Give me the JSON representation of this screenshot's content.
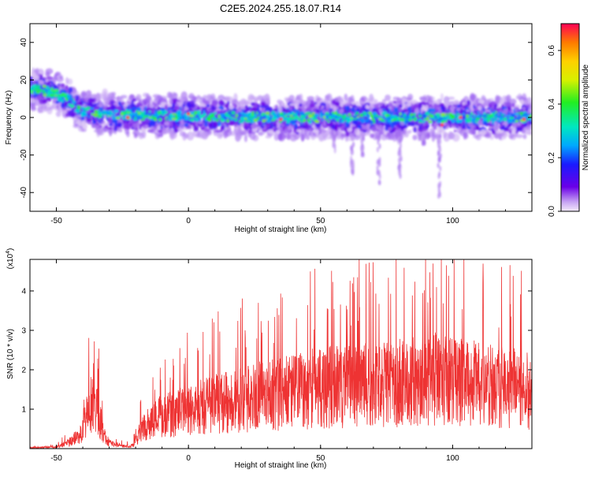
{
  "title": "C2E5.2024.255.18.07.R14",
  "colors": {
    "snr_line": "#ee3333",
    "spectrogram_low": "#ddc8f6",
    "spectrogram_mid": "#6a00e8"
  },
  "chart_data": [
    {
      "type": "heatmap",
      "xlabel": "Height of straight line (km)",
      "ylabel": "Frequency (Hz)",
      "xlim": [
        -60,
        130
      ],
      "ylim": [
        -50,
        50
      ],
      "xticks": [
        -50,
        0,
        50,
        100
      ],
      "yticks": [
        -40,
        -20,
        0,
        20,
        40
      ],
      "grid": false,
      "ridge": {
        "x": [
          -60,
          -50,
          -45,
          -40,
          -30,
          -20,
          0,
          20,
          40,
          60,
          80,
          100,
          130
        ],
        "frequency": [
          16,
          13,
          9,
          3,
          2,
          1,
          1,
          0,
          0,
          0,
          0,
          0,
          0
        ]
      },
      "colorbar": {
        "label": "Normalized spectral amplitude",
        "range": [
          0.0,
          0.7
        ],
        "ticks": [
          0.0,
          0.2,
          0.4,
          0.6
        ]
      }
    },
    {
      "type": "line",
      "xlabel": "Height of straight line (km)",
      "ylabel": "SNR (10 * v/v)",
      "yscale_label": "(x10",
      "yscale_exp": "4",
      "xlim": [
        -60,
        130
      ],
      "ylim": [
        0,
        4.8
      ],
      "xticks": [
        -50,
        0,
        50,
        100
      ],
      "yticks": [
        1,
        2,
        3,
        4
      ],
      "grid": false,
      "envelope": {
        "x": [
          -60,
          -50,
          -45,
          -40,
          -38,
          -36,
          -34,
          -32,
          -30,
          -27,
          -24,
          -21,
          -18,
          -15,
          -10,
          -5,
          0,
          10,
          20,
          30,
          40,
          50,
          60,
          70,
          80,
          90,
          95,
          100,
          110,
          120,
          130
        ],
        "y": [
          0.02,
          0.06,
          0.2,
          0.55,
          1.2,
          1.7,
          1.1,
          0.45,
          0.2,
          0.1,
          0.08,
          0.1,
          0.6,
          0.9,
          1.05,
          1.15,
          1.25,
          1.45,
          1.6,
          1.75,
          1.85,
          2.0,
          2.05,
          2.1,
          2.15,
          2.2,
          2.3,
          2.25,
          2.1,
          2.0,
          1.9
        ]
      }
    }
  ]
}
